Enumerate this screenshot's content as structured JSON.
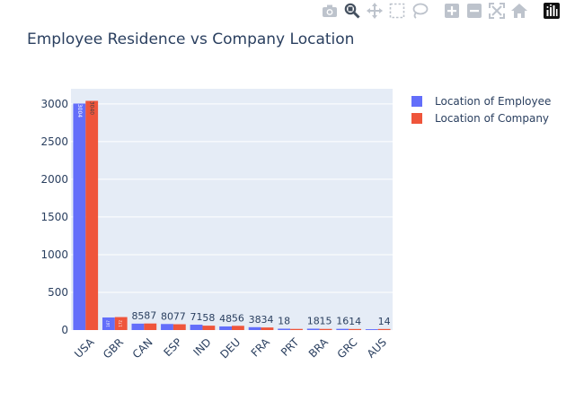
{
  "toolbar": {
    "buttons": [
      {
        "name": "camera-icon",
        "tooltip": "Download plot as a png"
      },
      {
        "name": "zoom-icon",
        "tooltip": "Zoom",
        "active": true
      },
      {
        "name": "pan-icon",
        "tooltip": "Pan"
      },
      {
        "name": "box-select-icon",
        "tooltip": "Box Select"
      },
      {
        "name": "lasso-select-icon",
        "tooltip": "Lasso Select"
      },
      {
        "name": "zoom-in-icon",
        "tooltip": "Zoom in"
      },
      {
        "name": "zoom-out-icon",
        "tooltip": "Zoom out"
      },
      {
        "name": "autoscale-icon",
        "tooltip": "Autoscale"
      },
      {
        "name": "reset-axes-icon",
        "tooltip": "Reset axes"
      },
      {
        "name": "plotly-logo-icon",
        "tooltip": "Produced with Plotly"
      }
    ]
  },
  "chart_data": {
    "type": "bar",
    "title": "Employee Residence vs Company Location",
    "xlabel": "",
    "ylabel": "",
    "categories": [
      "USA",
      "GBR",
      "CAN",
      "ESP",
      "IND",
      "DEU",
      "FRA",
      "PRT",
      "BRA",
      "GRC",
      "AUS"
    ],
    "series": [
      {
        "name": "Location of Employee",
        "color": "#636efa",
        "values": [
          3004,
          167,
          85,
          80,
          71,
          48,
          38,
          18,
          18,
          16,
          11
        ],
        "labels": [
          "3004",
          "167",
          "85",
          "80",
          "71",
          "48",
          "38",
          "18",
          "18",
          "16",
          ""
        ]
      },
      {
        "name": "Location of Company",
        "color": "#ef553b",
        "values": [
          3040,
          172,
          87,
          77,
          58,
          56,
          34,
          15,
          15,
          14,
          14
        ],
        "labels": [
          "3040",
          "172",
          "87",
          "77",
          "58",
          "56",
          "34",
          "",
          "15",
          "14",
          "14"
        ]
      }
    ],
    "ylim": [
      0,
      3200
    ],
    "yticks": [
      0,
      500,
      1000,
      1500,
      2000,
      2500,
      3000
    ],
    "grid": true,
    "legend_position": "top-right",
    "plot_bgcolor": "#e5ecf6"
  }
}
